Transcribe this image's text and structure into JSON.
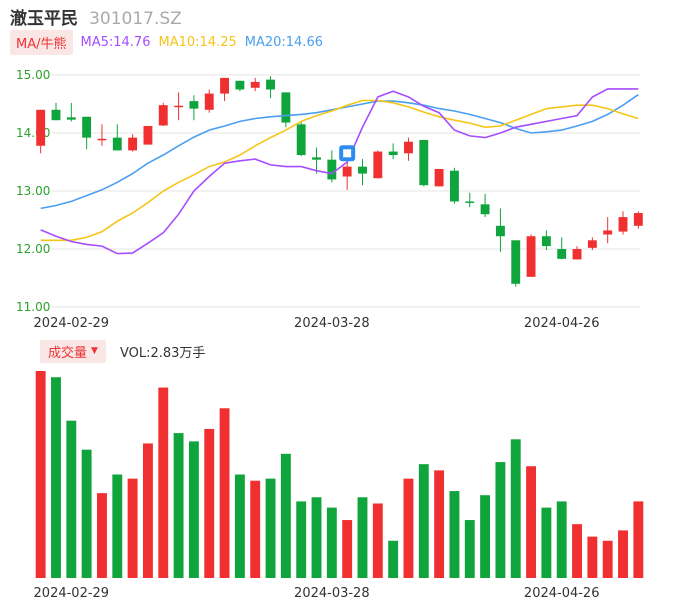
{
  "header": {
    "name": "澈玉平民",
    "code": "301017.SZ"
  },
  "ma_legend": {
    "button_label": "MA/牛熊",
    "ma5": "MA5:14.76",
    "ma10": "MA10:14.25",
    "ma20": "MA20:14.66"
  },
  "volume_legend": {
    "button_label": "成交量",
    "vol_text": "VOL:2.83万手"
  },
  "colors": {
    "up": "#f03030",
    "down": "#0fa53c",
    "ma5": "#a64dff",
    "ma10": "#f5c518",
    "ma20": "#4a9ff0",
    "grid": "#e6e6e6",
    "axis_label": "#2ca02c"
  },
  "chart_data": [
    {
      "type": "candlestick",
      "ylim": [
        11.0,
        15.0
      ],
      "y_ticks": [
        "15.00",
        "14.00",
        "13.00",
        "12.00",
        "11.00"
      ],
      "x_tick_labels": [
        "2024-02-29",
        "2024-03-28",
        "2024-04-26"
      ],
      "x_tick_index": [
        2,
        19,
        34
      ],
      "grid": true,
      "candles": [
        {
          "o": 13.78,
          "h": 14.4,
          "l": 13.65,
          "c": 14.4
        },
        {
          "o": 14.4,
          "h": 14.52,
          "l": 14.25,
          "c": 14.22
        },
        {
          "o": 14.27,
          "h": 14.52,
          "l": 14.2,
          "c": 14.23
        },
        {
          "o": 14.28,
          "h": 14.28,
          "l": 13.72,
          "c": 13.92
        },
        {
          "o": 13.9,
          "h": 14.15,
          "l": 13.78,
          "c": 13.9
        },
        {
          "o": 13.92,
          "h": 14.15,
          "l": 13.7,
          "c": 13.7
        },
        {
          "o": 13.7,
          "h": 13.98,
          "l": 13.68,
          "c": 13.92
        },
        {
          "o": 13.8,
          "h": 14.12,
          "l": 13.8,
          "c": 14.12
        },
        {
          "o": 14.13,
          "h": 14.52,
          "l": 14.12,
          "c": 14.48
        },
        {
          "o": 14.45,
          "h": 14.7,
          "l": 14.22,
          "c": 14.47
        },
        {
          "o": 14.55,
          "h": 14.65,
          "l": 14.22,
          "c": 14.42
        },
        {
          "o": 14.4,
          "h": 14.75,
          "l": 14.35,
          "c": 14.68
        },
        {
          "o": 14.68,
          "h": 14.95,
          "l": 14.55,
          "c": 14.95
        },
        {
          "o": 14.9,
          "h": 14.9,
          "l": 14.72,
          "c": 14.75
        },
        {
          "o": 14.78,
          "h": 14.95,
          "l": 14.72,
          "c": 14.88
        },
        {
          "o": 14.92,
          "h": 14.98,
          "l": 14.6,
          "c": 14.75
        },
        {
          "o": 14.7,
          "h": 14.7,
          "l": 14.1,
          "c": 14.18
        },
        {
          "o": 14.15,
          "h": 14.2,
          "l": 13.6,
          "c": 13.62
        },
        {
          "o": 13.58,
          "h": 13.75,
          "l": 13.3,
          "c": 13.54
        },
        {
          "o": 13.54,
          "h": 13.7,
          "l": 13.15,
          "c": 13.2
        },
        {
          "o": 13.25,
          "h": 13.5,
          "l": 13.02,
          "c": 13.42
        },
        {
          "o": 13.42,
          "h": 13.55,
          "l": 13.1,
          "c": 13.3
        },
        {
          "o": 13.22,
          "h": 13.7,
          "l": 13.22,
          "c": 13.68
        },
        {
          "o": 13.68,
          "h": 13.82,
          "l": 13.55,
          "c": 13.62
        },
        {
          "o": 13.65,
          "h": 13.92,
          "l": 13.52,
          "c": 13.85
        },
        {
          "o": 13.88,
          "h": 13.88,
          "l": 13.08,
          "c": 13.1
        },
        {
          "o": 13.08,
          "h": 13.38,
          "l": 13.08,
          "c": 13.38
        },
        {
          "o": 13.35,
          "h": 13.4,
          "l": 12.78,
          "c": 12.82
        },
        {
          "o": 12.82,
          "h": 12.97,
          "l": 12.72,
          "c": 12.8
        },
        {
          "o": 12.77,
          "h": 12.95,
          "l": 12.55,
          "c": 12.6
        },
        {
          "o": 12.4,
          "h": 12.7,
          "l": 11.95,
          "c": 12.22
        },
        {
          "o": 12.15,
          "h": 12.15,
          "l": 11.35,
          "c": 11.4
        },
        {
          "o": 11.52,
          "h": 12.25,
          "l": 11.52,
          "c": 12.22
        },
        {
          "o": 12.22,
          "h": 12.32,
          "l": 11.98,
          "c": 12.05
        },
        {
          "o": 12.0,
          "h": 12.2,
          "l": 11.82,
          "c": 11.83
        },
        {
          "o": 11.82,
          "h": 12.05,
          "l": 11.82,
          "c": 12.0
        },
        {
          "o": 12.02,
          "h": 12.2,
          "l": 11.98,
          "c": 12.15
        },
        {
          "o": 12.25,
          "h": 12.55,
          "l": 12.1,
          "c": 12.32
        },
        {
          "o": 12.3,
          "h": 12.65,
          "l": 12.25,
          "c": 12.55
        },
        {
          "o": 12.4,
          "h": 12.65,
          "l": 12.35,
          "c": 12.62
        }
      ],
      "ma5": [
        12.33,
        12.22,
        12.13,
        12.08,
        12.05,
        11.92,
        11.93,
        12.1,
        12.28,
        12.6,
        13.0,
        13.25,
        13.48,
        13.52,
        13.55,
        13.45,
        13.42,
        13.42,
        13.35,
        13.3,
        13.5,
        14.1,
        14.62,
        14.72,
        14.62,
        14.46,
        14.35,
        14.05,
        13.95,
        13.92,
        14.0,
        14.1,
        14.15,
        14.2,
        14.25,
        14.3,
        14.62,
        14.76,
        14.76,
        14.76
      ],
      "ma10": [
        12.15,
        12.15,
        12.15,
        12.2,
        12.3,
        12.48,
        12.62,
        12.8,
        13.0,
        13.15,
        13.28,
        13.42,
        13.5,
        13.62,
        13.78,
        13.92,
        14.05,
        14.2,
        14.3,
        14.38,
        14.48,
        14.56,
        14.56,
        14.52,
        14.45,
        14.36,
        14.28,
        14.22,
        14.17,
        14.1,
        14.12,
        14.22,
        14.32,
        14.42,
        14.45,
        14.48,
        14.48,
        14.42,
        14.33,
        14.25
      ],
      "ma20": [
        12.7,
        12.75,
        12.82,
        12.92,
        13.02,
        13.15,
        13.3,
        13.48,
        13.62,
        13.78,
        13.93,
        14.05,
        14.12,
        14.2,
        14.25,
        14.28,
        14.3,
        14.32,
        14.35,
        14.4,
        14.45,
        14.5,
        14.55,
        14.55,
        14.52,
        14.48,
        14.42,
        14.38,
        14.32,
        14.25,
        14.18,
        14.08,
        14.0,
        14.02,
        14.05,
        14.12,
        14.2,
        14.32,
        14.48,
        14.66
      ]
    },
    {
      "type": "bar",
      "title": "成交量",
      "x_tick_labels": [
        "2024-02-29",
        "2024-03-28",
        "2024-04-26"
      ],
      "values": [
        100,
        97,
        76,
        62,
        41,
        50,
        48,
        65,
        92,
        70,
        66,
        72,
        82,
        50,
        47,
        48,
        60,
        37,
        39,
        34,
        28,
        39,
        36,
        18,
        48,
        55,
        52,
        42,
        28,
        40,
        56,
        67,
        54,
        34,
        37,
        26,
        20,
        18,
        23,
        37
      ],
      "up": [
        true,
        false,
        false,
        false,
        true,
        false,
        true,
        true,
        true,
        false,
        false,
        true,
        true,
        false,
        true,
        false,
        false,
        false,
        false,
        false,
        true,
        false,
        true,
        false,
        true,
        false,
        true,
        false,
        false,
        false,
        false,
        false,
        true,
        false,
        false,
        true,
        true,
        true,
        true,
        true
      ]
    }
  ]
}
